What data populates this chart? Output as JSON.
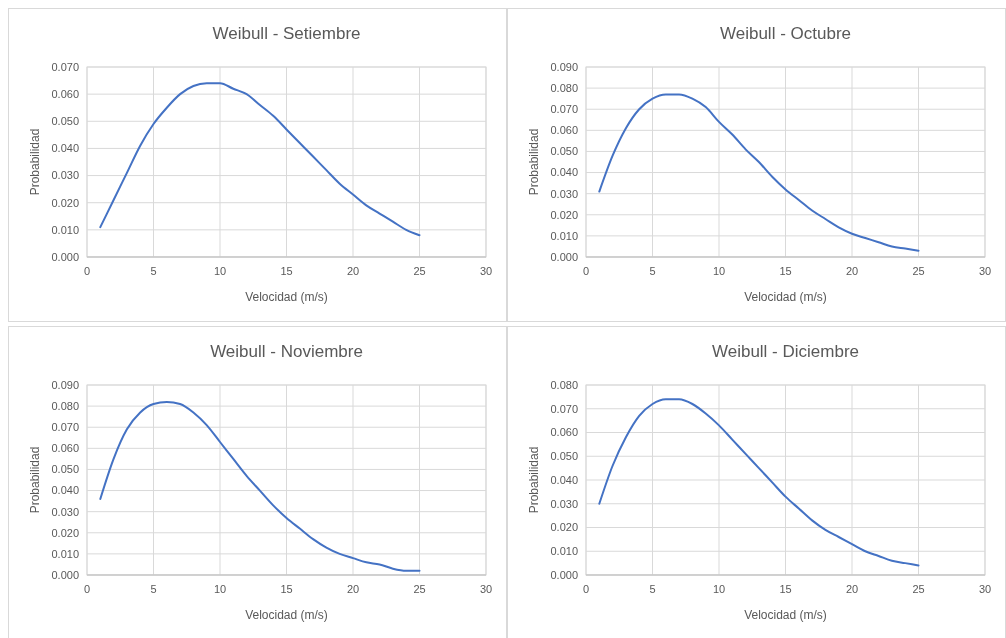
{
  "chart_data": [
    {
      "type": "line",
      "title": "Weibull - Setiembre",
      "xlabel": "Velocidad (m/s)",
      "ylabel": "Probabilidad",
      "grid": true,
      "x": [
        1,
        2,
        3,
        4,
        5,
        6,
        7,
        8,
        9,
        10,
        11,
        12,
        13,
        14,
        15,
        16,
        17,
        18,
        19,
        20,
        21,
        22,
        23,
        24,
        25
      ],
      "series": [
        {
          "color": "#4472c4",
          "values": [
            0.011,
            0.021,
            0.031,
            0.041,
            0.049,
            0.055,
            0.06,
            0.063,
            0.064,
            0.064,
            0.062,
            0.06,
            0.056,
            0.052,
            0.047,
            0.042,
            0.037,
            0.032,
            0.027,
            0.023,
            0.019,
            0.016,
            0.013,
            0.01,
            0.008
          ]
        }
      ],
      "xlim": [
        0,
        30
      ],
      "xticks": [
        0,
        5,
        10,
        15,
        20,
        25,
        30
      ],
      "ylim": [
        0,
        0.07
      ],
      "yticks": [
        {
          "value": 0,
          "label": "0.000"
        },
        {
          "value": 0.01,
          "label": "0.010"
        },
        {
          "value": 0.02,
          "label": "0.020"
        },
        {
          "value": 0.03,
          "label": "0.030"
        },
        {
          "value": 0.04,
          "label": "0.040"
        },
        {
          "value": 0.05,
          "label": "0.050"
        },
        {
          "value": 0.06,
          "label": "0.060"
        },
        {
          "value": 0.07,
          "label": "0.070"
        }
      ]
    },
    {
      "type": "line",
      "title": "Weibull - Octubre",
      "xlabel": "Velocidad (m/s)",
      "ylabel": "Probabilidad",
      "grid": true,
      "x": [
        1,
        2,
        3,
        4,
        5,
        6,
        7,
        8,
        9,
        10,
        11,
        12,
        13,
        14,
        15,
        16,
        17,
        18,
        19,
        20,
        21,
        22,
        23,
        24,
        25
      ],
      "series": [
        {
          "color": "#4472c4",
          "values": [
            0.031,
            0.048,
            0.061,
            0.07,
            0.075,
            0.077,
            0.077,
            0.075,
            0.071,
            0.064,
            0.058,
            0.051,
            0.045,
            0.038,
            0.032,
            0.027,
            0.022,
            0.018,
            0.014,
            0.011,
            0.009,
            0.007,
            0.005,
            0.004,
            0.003
          ]
        }
      ],
      "xlim": [
        0,
        30
      ],
      "xticks": [
        0,
        5,
        10,
        15,
        20,
        25,
        30
      ],
      "ylim": [
        0,
        0.09
      ],
      "yticks": [
        {
          "value": 0,
          "label": "0.000"
        },
        {
          "value": 0.01,
          "label": "0.010"
        },
        {
          "value": 0.02,
          "label": "0.020"
        },
        {
          "value": 0.03,
          "label": "0.030"
        },
        {
          "value": 0.04,
          "label": "0.040"
        },
        {
          "value": 0.05,
          "label": "0.050"
        },
        {
          "value": 0.06,
          "label": "0.060"
        },
        {
          "value": 0.07,
          "label": "0.070"
        },
        {
          "value": 0.08,
          "label": "0.080"
        },
        {
          "value": 0.09,
          "label": "0.090"
        }
      ]
    },
    {
      "type": "line",
      "title": "Weibull - Noviembre",
      "xlabel": "Velocidad (m/s)",
      "ylabel": "Probabilidad",
      "grid": true,
      "x": [
        1,
        2,
        3,
        4,
        5,
        6,
        7,
        8,
        9,
        10,
        11,
        12,
        13,
        14,
        15,
        16,
        17,
        18,
        19,
        20,
        21,
        22,
        23,
        24,
        25
      ],
      "series": [
        {
          "color": "#4472c4",
          "values": [
            0.036,
            0.055,
            0.069,
            0.077,
            0.081,
            0.082,
            0.081,
            0.077,
            0.071,
            0.063,
            0.055,
            0.047,
            0.04,
            0.033,
            0.027,
            0.022,
            0.017,
            0.013,
            0.01,
            0.008,
            0.006,
            0.005,
            0.003,
            0.002,
            0.002
          ]
        }
      ],
      "xlim": [
        0,
        30
      ],
      "xticks": [
        0,
        5,
        10,
        15,
        20,
        25,
        30
      ],
      "ylim": [
        0,
        0.09
      ],
      "yticks": [
        {
          "value": 0,
          "label": "0.000"
        },
        {
          "value": 0.01,
          "label": "0.010"
        },
        {
          "value": 0.02,
          "label": "0.020"
        },
        {
          "value": 0.03,
          "label": "0.030"
        },
        {
          "value": 0.04,
          "label": "0.040"
        },
        {
          "value": 0.05,
          "label": "0.050"
        },
        {
          "value": 0.06,
          "label": "0.060"
        },
        {
          "value": 0.07,
          "label": "0.070"
        },
        {
          "value": 0.08,
          "label": "0.080"
        },
        {
          "value": 0.09,
          "label": "0.090"
        }
      ]
    },
    {
      "type": "line",
      "title": "Weibull - Diciembre",
      "xlabel": "Velocidad (m/s)",
      "ylabel": "Probabilidad",
      "grid": true,
      "x": [
        1,
        2,
        3,
        4,
        5,
        6,
        7,
        8,
        9,
        10,
        11,
        12,
        13,
        14,
        15,
        16,
        17,
        18,
        19,
        20,
        21,
        22,
        23,
        24,
        25
      ],
      "series": [
        {
          "color": "#4472c4",
          "values": [
            0.03,
            0.046,
            0.058,
            0.067,
            0.072,
            0.074,
            0.074,
            0.072,
            0.068,
            0.063,
            0.057,
            0.051,
            0.045,
            0.039,
            0.033,
            0.028,
            0.023,
            0.019,
            0.016,
            0.013,
            0.01,
            0.008,
            0.006,
            0.005,
            0.004
          ]
        }
      ],
      "xlim": [
        0,
        30
      ],
      "xticks": [
        0,
        5,
        10,
        15,
        20,
        25,
        30
      ],
      "ylim": [
        0,
        0.08
      ],
      "yticks": [
        {
          "value": 0,
          "label": "0.000"
        },
        {
          "value": 0.01,
          "label": "0.010"
        },
        {
          "value": 0.02,
          "label": "0.020"
        },
        {
          "value": 0.03,
          "label": "0.030"
        },
        {
          "value": 0.04,
          "label": "0.040"
        },
        {
          "value": 0.05,
          "label": "0.050"
        },
        {
          "value": 0.06,
          "label": "0.060"
        },
        {
          "value": 0.07,
          "label": "0.070"
        },
        {
          "value": 0.08,
          "label": "0.080"
        }
      ]
    }
  ]
}
